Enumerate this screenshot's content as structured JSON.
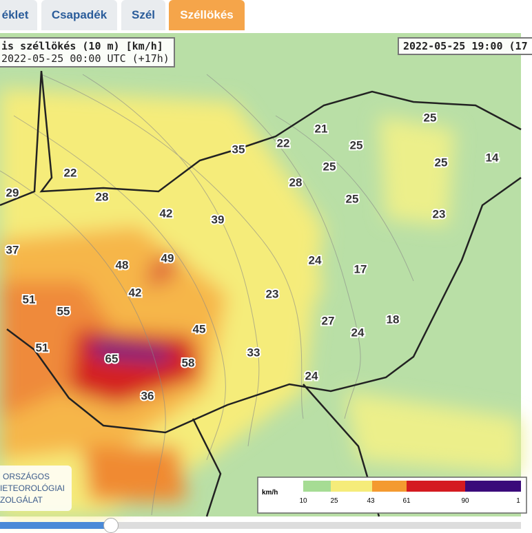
{
  "tabs": [
    "éklet",
    "Csapadék",
    "Szél",
    "Széllökés"
  ],
  "map": {
    "title": "is széllökés (10 m) [km/h]",
    "subtitle": "2022-05-25 00:00 UTC (+17h)",
    "valid_time": "2022-05-25 19:00 (17",
    "labels": [
      "21",
      "22",
      "25",
      "25",
      "25",
      "14",
      "35",
      "25",
      "22",
      "28",
      "29",
      "28",
      "25",
      "23",
      "42",
      "39",
      "37",
      "24",
      "17",
      "48",
      "49",
      "42",
      "23",
      "51",
      "55",
      "27",
      "18",
      "24",
      "45",
      "51",
      "33",
      "65",
      "58",
      "24",
      "36"
    ],
    "legend": {
      "unit": "km/h",
      "ticks": [
        "10",
        "25",
        "43",
        "61",
        "90",
        "1"
      ]
    },
    "logo": [
      "ORSZÁGOS",
      "IETEOROLÓGIAI",
      "ZOLGÁLAT"
    ]
  }
}
